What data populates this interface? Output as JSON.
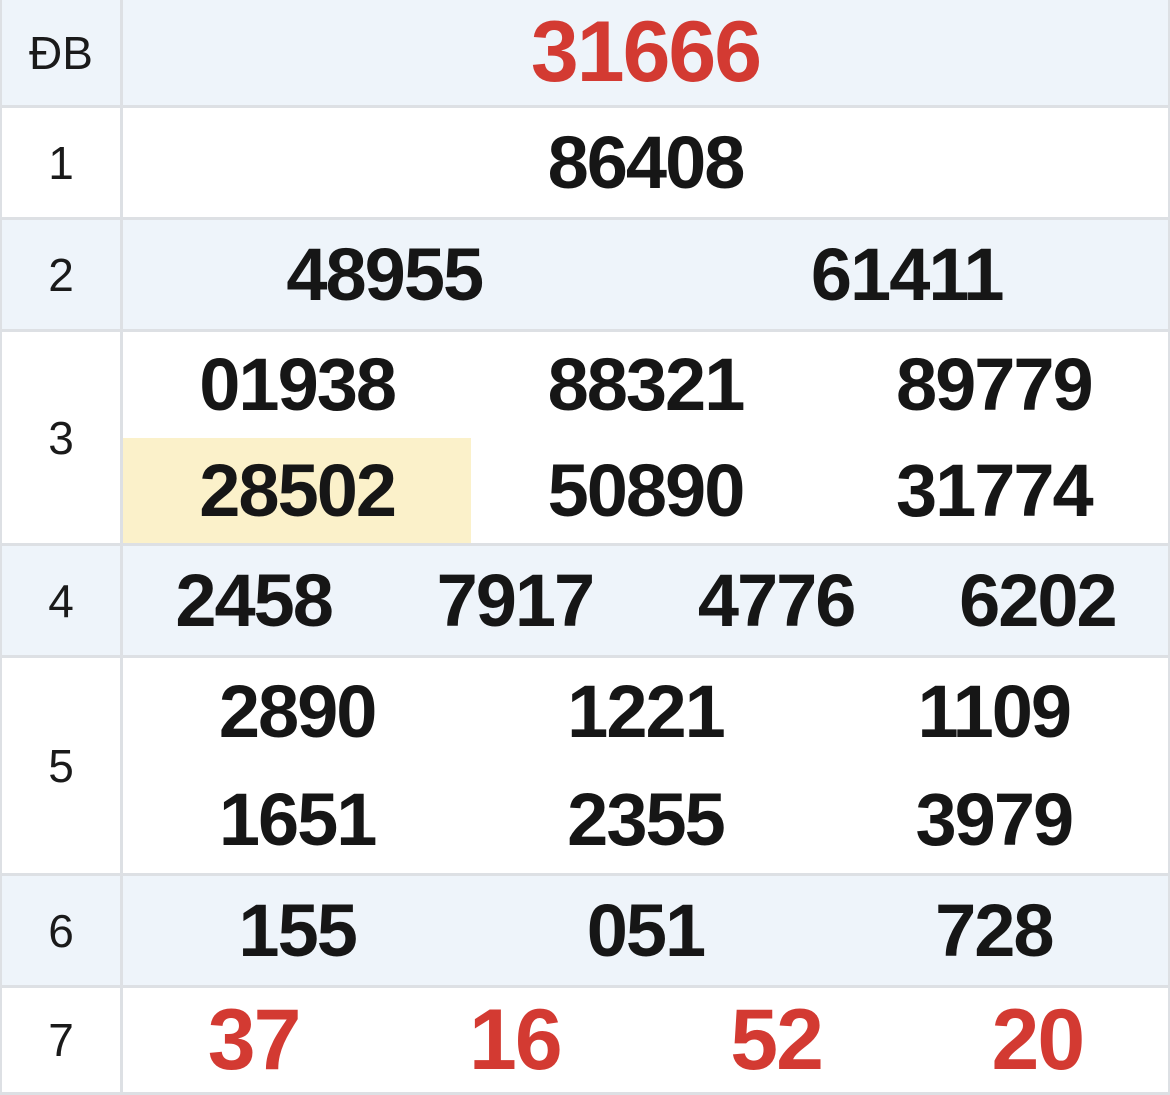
{
  "table": {
    "kind": "lottery-results",
    "rows": [
      {
        "label": "ĐB",
        "style": "special-red",
        "lines": [
          [
            "31666"
          ]
        ]
      },
      {
        "label": "1",
        "style": "normal",
        "lines": [
          [
            "86408"
          ]
        ]
      },
      {
        "label": "2",
        "style": "normal",
        "lines": [
          [
            "48955",
            "61411"
          ]
        ]
      },
      {
        "label": "3",
        "style": "normal",
        "lines": [
          [
            "01938",
            "88321",
            "89779"
          ],
          [
            "28502",
            "50890",
            "31774"
          ]
        ]
      },
      {
        "label": "4",
        "style": "normal",
        "lines": [
          [
            "2458",
            "7917",
            "4776",
            "6202"
          ]
        ]
      },
      {
        "label": "5",
        "style": "normal",
        "lines": [
          [
            "2890",
            "1221",
            "1109"
          ],
          [
            "1651",
            "2355",
            "3979"
          ]
        ]
      },
      {
        "label": "6",
        "style": "normal",
        "lines": [
          [
            "155",
            "051",
            "728"
          ]
        ]
      },
      {
        "label": "7",
        "style": "special-red",
        "lines": [
          [
            "37",
            "16",
            "52",
            "20"
          ]
        ]
      }
    ],
    "highlighted_number": "28502",
    "highlight_position": {
      "row_label": "3",
      "line": 1,
      "column": 0
    },
    "colors": {
      "special_red": "#d33a32",
      "alt_row_bg": "#eef4fa",
      "plain_row_bg": "#ffffff",
      "highlight_bg": "#fbf1ca",
      "border": "#dde0e4",
      "text": "#161616"
    }
  }
}
